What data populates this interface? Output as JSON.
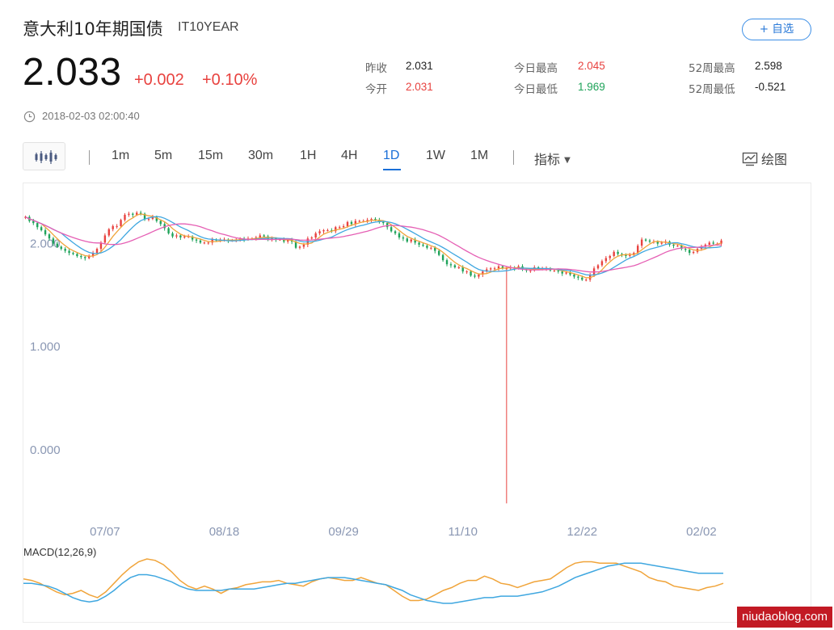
{
  "header": {
    "title": "意大利10年期国债",
    "symbol": "IT10YEAR",
    "follow_button": "+ 自选"
  },
  "quote": {
    "price": "2.033",
    "change": "+0.002",
    "change_pct": "+0.10%",
    "timestamp": "2018-02-03 02:00:40"
  },
  "stats": [
    {
      "label": "昨收",
      "value": "2.031",
      "tone": "neutral"
    },
    {
      "label": "今开",
      "value": "2.031",
      "tone": "up"
    },
    {
      "label": "今日最高",
      "value": "2.045",
      "tone": "up"
    },
    {
      "label": "今日最低",
      "value": "1.969",
      "tone": "down"
    },
    {
      "label": "52周最高",
      "value": "2.598",
      "tone": "neutral"
    },
    {
      "label": "52周最低",
      "value": "-0.521",
      "tone": "neutral"
    }
  ],
  "toolbar": {
    "periods": [
      "1m",
      "5m",
      "15m",
      "30m",
      "1H",
      "4H",
      "1D",
      "1W",
      "1M"
    ],
    "active_period": "1D",
    "indicator_label": "指标",
    "draw_label": "绘图"
  },
  "colors": {
    "up": "#e8423f",
    "down": "#1fa35a",
    "accent": "#1a6fd8",
    "ma_short": "#f0a43a",
    "ma_mid": "#3fa7e0",
    "ma_long": "#e55fb4"
  },
  "icons": {
    "chart_type": "candlestick-icon",
    "clock": "clock-icon",
    "draw": "draw-chart-icon"
  },
  "chart_data": {
    "type": "candlestick",
    "y_ticks": [
      "2.000",
      "1.000",
      "0.000"
    ],
    "y_tick_values": [
      2.0,
      1.0,
      0.0
    ],
    "ylim": [
      -0.55,
      2.35
    ],
    "x_ticks": [
      "07/07",
      "08/18",
      "09/29",
      "11/10",
      "12/22",
      "02/02"
    ],
    "x_tick_index": [
      20,
      50,
      80,
      110,
      140,
      170
    ],
    "closes": [
      2.26,
      2.22,
      2.2,
      2.16,
      2.13,
      2.09,
      2.05,
      2.0,
      1.97,
      1.95,
      1.93,
      1.91,
      1.9,
      1.88,
      1.87,
      1.86,
      1.88,
      1.91,
      1.95,
      2.01,
      2.08,
      2.14,
      2.17,
      2.17,
      2.23,
      2.28,
      2.29,
      2.28,
      2.3,
      2.29,
      2.24,
      2.24,
      2.26,
      2.22,
      2.19,
      2.15,
      2.1,
      2.07,
      2.08,
      2.06,
      2.07,
      2.07,
      2.04,
      2.03,
      2.01,
      2.01,
      2.01,
      2.04,
      2.03,
      2.04,
      2.04,
      2.03,
      2.03,
      2.04,
      2.05,
      2.04,
      2.05,
      2.05,
      2.06,
      2.08,
      2.07,
      2.04,
      2.05,
      2.04,
      2.04,
      2.02,
      2.04,
      2.02,
      1.96,
      1.97,
      1.99,
      2.05,
      2.06,
      2.1,
      2.12,
      2.13,
      2.13,
      2.12,
      2.16,
      2.16,
      2.17,
      2.21,
      2.19,
      2.22,
      2.22,
      2.22,
      2.23,
      2.24,
      2.23,
      2.21,
      2.2,
      2.16,
      2.12,
      2.1,
      2.06,
      2.05,
      2.02,
      2.04,
      2.01,
      1.99,
      1.98,
      1.96,
      1.96,
      1.93,
      1.89,
      1.84,
      1.8,
      1.79,
      1.77,
      1.77,
      1.73,
      1.73,
      1.69,
      1.68,
      1.7,
      1.73,
      1.75,
      1.76,
      1.76,
      1.78,
      1.76,
      1.76,
      1.77,
      1.76,
      1.78,
      1.75,
      1.74,
      1.74,
      1.77,
      1.76,
      1.76,
      1.76,
      1.74,
      1.74,
      1.73,
      1.71,
      1.72,
      1.7,
      1.68,
      1.67,
      1.65,
      1.65,
      1.7,
      1.76,
      1.79,
      1.83,
      1.86,
      1.88,
      1.92,
      1.9,
      1.89,
      1.88,
      1.89,
      1.91,
      1.98,
      2.04,
      2.03,
      2.02,
      2.02,
      2.0,
      2.01,
      2.02,
      1.99,
      1.98,
      1.98,
      1.95,
      1.94,
      1.91,
      1.92,
      1.95,
      1.97,
      1.99,
      2.01,
      2.0,
      2.0,
      2.03
    ],
    "spike_low": {
      "index": 121,
      "value": -0.521
    },
    "macd_label": "MACD(12,26,9)",
    "macd": [
      0.05,
      0.04,
      0.02,
      -0.01,
      -0.04,
      -0.06,
      -0.05,
      -0.03,
      -0.06,
      -0.08,
      -0.04,
      0.02,
      0.08,
      0.13,
      0.17,
      0.19,
      0.18,
      0.15,
      0.1,
      0.04,
      0.0,
      -0.02,
      0.0,
      -0.02,
      -0.05,
      -0.02,
      -0.01,
      0.01,
      0.02,
      0.03,
      0.03,
      0.04,
      0.02,
      0.01,
      0.0,
      0.03,
      0.05,
      0.06,
      0.05,
      0.04,
      0.04,
      0.06,
      0.04,
      0.02,
      0.01,
      -0.03,
      -0.07,
      -0.1,
      -0.1,
      -0.09,
      -0.06,
      -0.03,
      -0.01,
      0.02,
      0.04,
      0.04,
      0.07,
      0.05,
      0.02,
      0.01,
      -0.01,
      0.01,
      0.03,
      0.04,
      0.05,
      0.09,
      0.13,
      0.16,
      0.17,
      0.17,
      0.16,
      0.16,
      0.16,
      0.14,
      0.12,
      0.1,
      0.06,
      0.04,
      0.03,
      0.0,
      -0.01,
      -0.02,
      -0.03,
      -0.01,
      0.0,
      0.02
    ],
    "signal": [
      0.02,
      0.02,
      0.01,
      0.0,
      -0.02,
      -0.05,
      -0.08,
      -0.1,
      -0.11,
      -0.1,
      -0.07,
      -0.03,
      0.02,
      0.06,
      0.08,
      0.08,
      0.07,
      0.05,
      0.03,
      0.0,
      -0.02,
      -0.03,
      -0.03,
      -0.03,
      -0.03,
      -0.02,
      -0.02,
      -0.02,
      -0.02,
      -0.01,
      0.0,
      0.01,
      0.02,
      0.02,
      0.03,
      0.04,
      0.05,
      0.06,
      0.06,
      0.06,
      0.05,
      0.04,
      0.03,
      0.02,
      0.01,
      -0.01,
      -0.03,
      -0.06,
      -0.08,
      -0.1,
      -0.11,
      -0.12,
      -0.12,
      -0.11,
      -0.1,
      -0.09,
      -0.08,
      -0.08,
      -0.07,
      -0.07,
      -0.07,
      -0.06,
      -0.05,
      -0.04,
      -0.02,
      0.0,
      0.03,
      0.06,
      0.08,
      0.1,
      0.12,
      0.14,
      0.15,
      0.16,
      0.16,
      0.16,
      0.15,
      0.14,
      0.13,
      0.12,
      0.11,
      0.1,
      0.09,
      0.09,
      0.09,
      0.09
    ]
  },
  "watermark": "niudaoblog.com"
}
